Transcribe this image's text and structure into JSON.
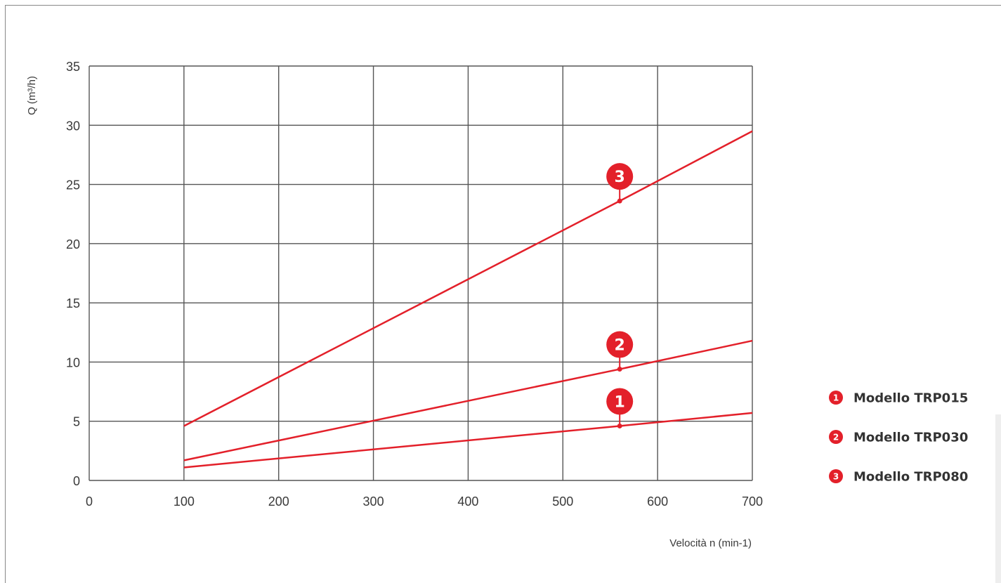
{
  "chart_data": {
    "type": "line",
    "ylabel": "Q (m³/h)",
    "xlabel": "Velocità n (min-1)",
    "xlim": [
      0,
      700
    ],
    "ylim": [
      0,
      35
    ],
    "x_ticks": [
      0,
      100,
      200,
      300,
      400,
      500,
      600,
      700
    ],
    "y_ticks": [
      0,
      5,
      10,
      15,
      20,
      25,
      30,
      35
    ],
    "grid": true,
    "legend_position": "right",
    "series": [
      {
        "marker": "1",
        "name": "Modello TRP015",
        "color": "#e3202a",
        "points": [
          [
            100,
            1.1
          ],
          [
            560,
            4.6
          ],
          [
            700,
            5.7
          ]
        ]
      },
      {
        "marker": "2",
        "name": "Modello TRP030",
        "color": "#e3202a",
        "points": [
          [
            100,
            1.7
          ],
          [
            560,
            9.4
          ],
          [
            700,
            11.8
          ]
        ]
      },
      {
        "marker": "3",
        "name": "Modello TRP080",
        "color": "#e3202a",
        "points": [
          [
            100,
            4.6
          ],
          [
            560,
            23.6
          ],
          [
            700,
            29.5
          ]
        ]
      }
    ],
    "marker_x": 560
  },
  "colors": {
    "grid": "#555555",
    "accent": "#e3202a"
  }
}
